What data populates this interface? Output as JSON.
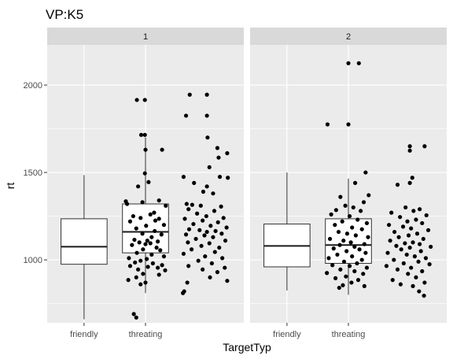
{
  "chart_data": {
    "type": "box",
    "title": "VP:K5",
    "xlabel": "TargetTyp",
    "ylabel": "rt",
    "categories": [
      "friendly",
      "threating"
    ],
    "y_ticks": [
      1000,
      1500,
      2000
    ],
    "y_tick_labels": [
      "1000",
      "1500",
      "2000"
    ],
    "ylim": [
      640,
      2230
    ],
    "facets": [
      {
        "label": "1",
        "groups": [
          {
            "category": "friendly",
            "box": {
              "lower_whisker": 660,
              "q1": 975,
              "median": 1075,
              "q3": 1235,
              "upper_whisker": 1485
            },
            "points": [
              [
                1.86,
                1915
              ],
              [
                1.99,
                1915
              ],
              [
                1.93,
                1715
              ],
              [
                1.99,
                1715
              ],
              [
                2.0,
                1630
              ],
              [
                2.27,
                1630
              ],
              [
                1.99,
                1495
              ],
              [
                2.05,
                1445
              ],
              [
                1.88,
                1420
              ],
              [
                1.95,
                1330
              ],
              [
                2.22,
                1340
              ],
              [
                2.33,
                1310
              ],
              [
                1.68,
                1335
              ],
              [
                1.7,
                1320
              ],
              [
                2.14,
                1270
              ],
              [
                2.08,
                1260
              ],
              [
                1.8,
                1250
              ],
              [
                1.92,
                1240
              ],
              [
                2.16,
                1225
              ],
              [
                2.22,
                1235
              ],
              [
                1.75,
                1220
              ],
              [
                2.3,
                1200
              ],
              [
                2.01,
                1195
              ],
              [
                1.85,
                1180
              ],
              [
                2.15,
                1165
              ],
              [
                1.95,
                1150
              ],
              [
                2.26,
                1145
              ],
              [
                2.1,
                1130
              ],
              [
                1.82,
                1115
              ],
              [
                2.03,
                1110
              ],
              [
                2.2,
                1105
              ],
              [
                1.9,
                1100
              ],
              [
                2.08,
                1095
              ],
              [
                2.0,
                1090
              ],
              [
                1.78,
                1085
              ],
              [
                2.18,
                1070
              ],
              [
                1.96,
                1060
              ],
              [
                2.24,
                1055
              ],
              [
                1.86,
                1040
              ],
              [
                2.1,
                1030
              ],
              [
                2.3,
                1020
              ],
              [
                1.73,
                1010
              ],
              [
                2.02,
                1005
              ],
              [
                1.92,
                995
              ],
              [
                1.83,
                985
              ],
              [
                2.12,
                980
              ],
              [
                2.27,
                970
              ],
              [
                1.75,
                965
              ],
              [
                2.04,
                960
              ],
              [
                2.2,
                955
              ],
              [
                1.88,
                945
              ],
              [
                2.32,
                940
              ],
              [
                1.96,
                920
              ],
              [
                2.22,
                915
              ],
              [
                1.85,
                900
              ],
              [
                1.72,
                885
              ],
              [
                2.0,
                870
              ],
              [
                1.92,
                860
              ],
              [
                1.81,
                690
              ],
              [
                1.85,
                670
              ]
            ]
          },
          {
            "category": "threating",
            "box": {
              "lower_whisker": 810,
              "q1": 1040,
              "median": 1160,
              "q3": 1320,
              "upper_whisker": 1700
            },
            "points": [
              [
                2.72,
                1945
              ],
              [
                3.0,
                1945
              ],
              [
                2.66,
                1825
              ],
              [
                3.0,
                1825
              ],
              [
                3.01,
                1700
              ],
              [
                3.17,
                1640
              ],
              [
                3.19,
                1585
              ],
              [
                3.33,
                1610
              ],
              [
                3.04,
                1530
              ],
              [
                2.62,
                1475
              ],
              [
                3.21,
                1475
              ],
              [
                3.34,
                1470
              ],
              [
                2.79,
                1440
              ],
              [
                3.0,
                1420
              ],
              [
                2.94,
                1390
              ],
              [
                3.1,
                1380
              ],
              [
                2.67,
                1320
              ],
              [
                2.76,
                1315
              ],
              [
                2.9,
                1310
              ],
              [
                3.23,
                1305
              ],
              [
                2.7,
                1290
              ],
              [
                3.12,
                1280
              ],
              [
                2.84,
                1265
              ],
              [
                2.99,
                1250
              ],
              [
                3.27,
                1240
              ],
              [
                2.64,
                1235
              ],
              [
                2.93,
                1225
              ],
              [
                3.18,
                1215
              ],
              [
                2.78,
                1205
              ],
              [
                3.06,
                1195
              ],
              [
                3.32,
                1185
              ],
              [
                2.71,
                1175
              ],
              [
                2.88,
                1170
              ],
              [
                3.14,
                1165
              ],
              [
                3.0,
                1160
              ],
              [
                3.24,
                1150
              ],
              [
                2.66,
                1145
              ],
              [
                2.96,
                1140
              ],
              [
                3.1,
                1130
              ],
              [
                2.82,
                1120
              ],
              [
                3.3,
                1110
              ],
              [
                2.69,
                1100
              ],
              [
                3.04,
                1095
              ],
              [
                2.91,
                1080
              ],
              [
                3.2,
                1070
              ],
              [
                2.75,
                1060
              ],
              [
                3.13,
                1045
              ],
              [
                2.62,
                1035
              ],
              [
                2.97,
                1020
              ],
              [
                3.25,
                1010
              ],
              [
                2.86,
                995
              ],
              [
                3.08,
                980
              ],
              [
                2.7,
                965
              ],
              [
                3.29,
                955
              ],
              [
                2.93,
                945
              ],
              [
                3.17,
                930
              ],
              [
                3.05,
                900
              ],
              [
                3.33,
                880
              ],
              [
                2.68,
                870
              ],
              [
                2.63,
                820
              ],
              [
                2.61,
                810
              ]
            ]
          }
        ]
      },
      {
        "label": "2",
        "groups": [
          {
            "category": "friendly",
            "box": {
              "lower_whisker": 825,
              "q1": 960,
              "median": 1080,
              "q3": 1205,
              "upper_whisker": 1500
            },
            "points": [
              [
                2.0,
                2125
              ],
              [
                2.17,
                2125
              ],
              [
                1.66,
                1775
              ],
              [
                2.0,
                1775
              ],
              [
                2.28,
                1500
              ],
              [
                2.11,
                1440
              ],
              [
                2.33,
                1370
              ],
              [
                1.87,
                1360
              ],
              [
                2.25,
                1330
              ],
              [
                1.95,
                1310
              ],
              [
                2.08,
                1300
              ],
              [
                2.2,
                1280
              ],
              [
                1.8,
                1285
              ],
              [
                1.72,
                1260
              ],
              [
                2.02,
                1250
              ],
              [
                2.15,
                1230
              ],
              [
                1.9,
                1220
              ],
              [
                2.3,
                1210
              ],
              [
                1.78,
                1200
              ],
              [
                2.06,
                1185
              ],
              [
                2.22,
                1175
              ],
              [
                1.84,
                1160
              ],
              [
                1.98,
                1150
              ],
              [
                2.12,
                1140
              ],
              [
                2.32,
                1130
              ],
              [
                1.7,
                1120
              ],
              [
                1.92,
                1110
              ],
              [
                2.04,
                1100
              ],
              [
                2.26,
                1090
              ],
              [
                1.86,
                1085
              ],
              [
                2.1,
                1075
              ],
              [
                1.76,
                1065
              ],
              [
                2.18,
                1060
              ],
              [
                1.97,
                1050
              ],
              [
                2.28,
                1040
              ],
              [
                1.82,
                1030
              ],
              [
                2.06,
                1020
              ],
              [
                1.68,
                1010
              ],
              [
                2.22,
                1000
              ],
              [
                1.93,
                990
              ],
              [
                2.14,
                980
              ],
              [
                1.74,
                970
              ],
              [
                2.02,
                965
              ],
              [
                2.3,
                955
              ],
              [
                1.87,
                945
              ],
              [
                2.1,
                935
              ],
              [
                1.65,
                925
              ],
              [
                2.24,
                920
              ],
              [
                1.96,
                905
              ],
              [
                1.79,
                895
              ],
              [
                2.16,
                885
              ],
              [
                2.05,
                870
              ],
              [
                1.91,
                855
              ],
              [
                2.26,
                850
              ],
              [
                1.85,
                840
              ]
            ]
          },
          {
            "category": "threating",
            "box": {
              "lower_whisker": 800,
              "q1": 980,
              "median": 1085,
              "q3": 1235,
              "upper_whisker": 1465
            },
            "points": [
              [
                3.0,
                1650
              ],
              [
                3.0,
                1625
              ],
              [
                3.24,
                1650
              ],
              [
                3.04,
                1470
              ],
              [
                3.0,
                1440
              ],
              [
                2.8,
                1430
              ],
              [
                2.93,
                1300
              ],
              [
                3.16,
                1290
              ],
              [
                3.06,
                1280
              ],
              [
                2.7,
                1270
              ],
              [
                3.27,
                1255
              ],
              [
                2.84,
                1245
              ],
              [
                3.1,
                1230
              ],
              [
                2.96,
                1220
              ],
              [
                3.2,
                1210
              ],
              [
                2.66,
                1200
              ],
              [
                2.89,
                1190
              ],
              [
                3.02,
                1180
              ],
              [
                3.3,
                1170
              ],
              [
                2.75,
                1160
              ],
              [
                3.12,
                1150
              ],
              [
                2.98,
                1140
              ],
              [
                2.82,
                1130
              ],
              [
                3.22,
                1120
              ],
              [
                2.68,
                1110
              ],
              [
                3.05,
                1100
              ],
              [
                2.92,
                1095
              ],
              [
                3.16,
                1090
              ],
              [
                2.78,
                1080
              ],
              [
                3.34,
                1075
              ],
              [
                3.0,
                1070
              ],
              [
                2.86,
                1060
              ],
              [
                3.18,
                1050
              ],
              [
                2.64,
                1040
              ],
              [
                2.95,
                1030
              ],
              [
                3.08,
                1020
              ],
              [
                3.26,
                1010
              ],
              [
                2.74,
                1000
              ],
              [
                3.14,
                990
              ],
              [
                2.9,
                980
              ],
              [
                3.32,
                975
              ],
              [
                2.62,
                965
              ],
              [
                3.02,
                955
              ],
              [
                2.8,
                945
              ],
              [
                3.2,
                935
              ],
              [
                2.97,
                920
              ],
              [
                3.1,
                900
              ],
              [
                2.72,
                885
              ],
              [
                3.24,
                870
              ],
              [
                2.85,
                860
              ],
              [
                3.05,
                850
              ],
              [
                3.15,
                820
              ],
              [
                3.23,
                795
              ]
            ]
          }
        ]
      }
    ]
  }
}
